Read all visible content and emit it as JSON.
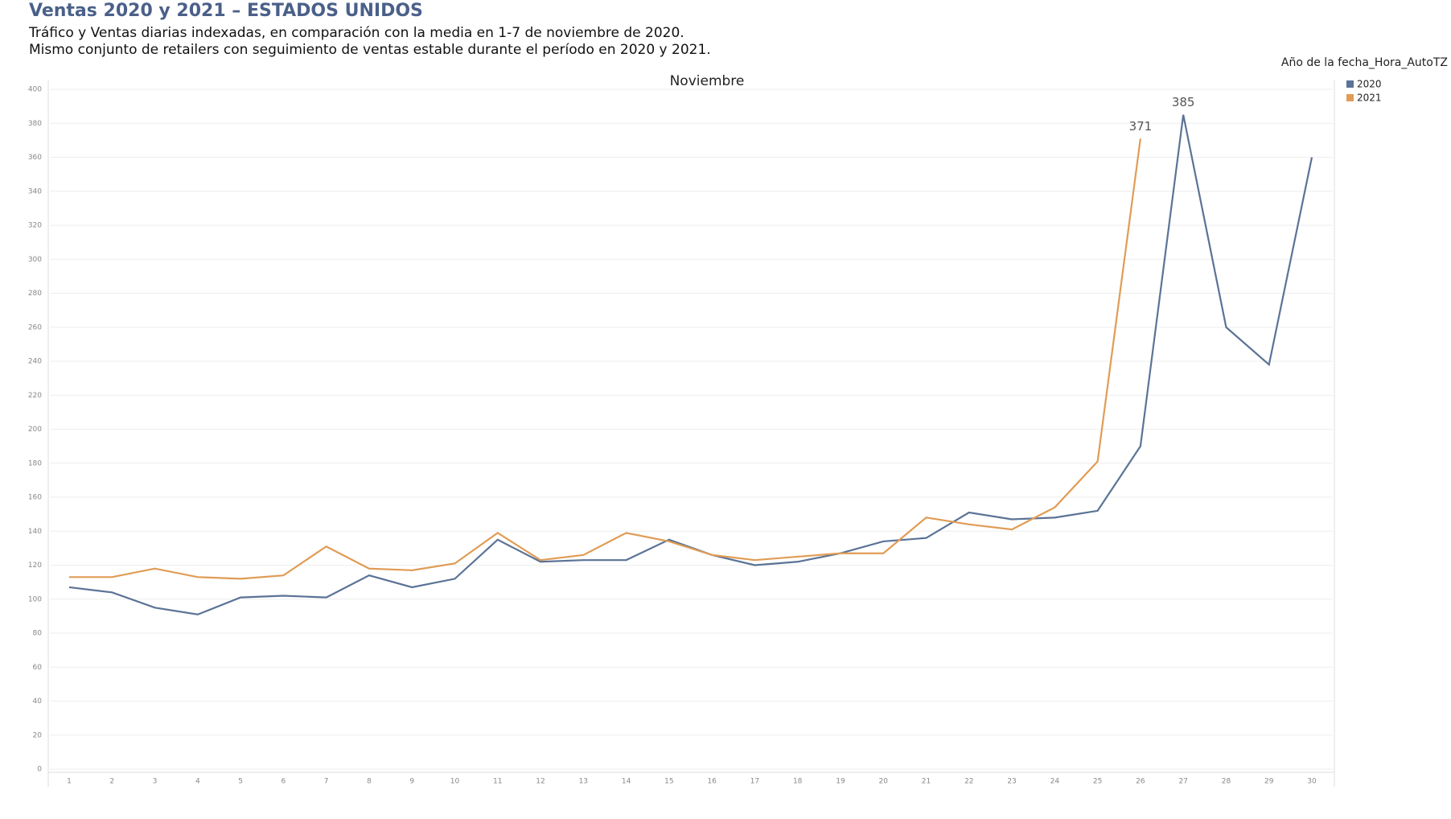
{
  "chart_data": {
    "type": "line",
    "title": "Ventas 2020 y 2021 – ESTADOS UNIDOS",
    "subtitle": [
      "Tráfico y Ventas diarias indexadas, en comparación con la media en 1-7 de noviembre de 2020.",
      "Mismo conjunto de retailers con seguimiento de ventas estable durante el período en 2020 y 2021."
    ],
    "x_label": "Noviembre",
    "legend_title": "Año de la fecha_Hora_AutoTZ",
    "legend_position": "right",
    "label_max": true,
    "grid": true,
    "categories": [
      "1",
      "2",
      "3",
      "4",
      "5",
      "6",
      "7",
      "8",
      "9",
      "10",
      "11",
      "12",
      "13",
      "14",
      "15",
      "16",
      "17",
      "18",
      "19",
      "20",
      "21",
      "22",
      "23",
      "24",
      "25",
      "26",
      "27",
      "28",
      "29",
      "30"
    ],
    "series": [
      {
        "name": "2020",
        "color": "#5b7396",
        "values": [
          107,
          104,
          95,
          91,
          101,
          102,
          101,
          114,
          107,
          112,
          135,
          122,
          123,
          123,
          135,
          126,
          120,
          122,
          127,
          134,
          136,
          151,
          147,
          148,
          152,
          190,
          385,
          260,
          238,
          360
        ]
      },
      {
        "name": "2021",
        "color": "#e09c55",
        "values": [
          113,
          113,
          118,
          113,
          112,
          114,
          131,
          118,
          117,
          121,
          139,
          123,
          126,
          139,
          134,
          126,
          123,
          125,
          127,
          127,
          148,
          144,
          141,
          154,
          181,
          371,
          null,
          null,
          null,
          null
        ]
      }
    ],
    "ylim": [
      0,
      400
    ],
    "yticks": [
      0,
      20,
      40,
      60,
      80,
      100,
      120,
      140,
      160,
      180,
      200,
      220,
      240,
      260,
      280,
      300,
      320,
      340,
      360,
      380,
      400
    ]
  }
}
